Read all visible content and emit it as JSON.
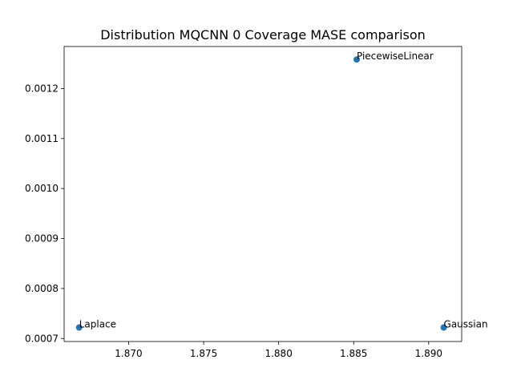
{
  "chart_data": {
    "type": "scatter",
    "title": "Distribution MQCNN 0 Coverage MASE comparison",
    "xlabel": "",
    "ylabel": "",
    "xlim": [
      1.8657,
      1.8922
    ],
    "ylim": [
      0.000694,
      0.001284
    ],
    "x_ticks": [
      1.87,
      1.875,
      1.88,
      1.885,
      1.89
    ],
    "x_tick_labels": [
      "1.870",
      "1.875",
      "1.880",
      "1.885",
      "1.890"
    ],
    "y_ticks": [
      0.0007,
      0.0008,
      0.0009,
      0.001,
      0.0011,
      0.0012
    ],
    "y_tick_labels": [
      "0.0007",
      "0.0008",
      "0.0009",
      "0.0010",
      "0.0011",
      "0.0012"
    ],
    "grid": false,
    "points": [
      {
        "label": "PiecewiseLinear",
        "x": 1.8852,
        "y": 0.001258
      },
      {
        "label": "Laplace",
        "x": 1.8667,
        "y": 0.000722
      },
      {
        "label": "Gaussian",
        "x": 1.891,
        "y": 0.000722
      }
    ],
    "marker_color": "#1f77b4"
  }
}
